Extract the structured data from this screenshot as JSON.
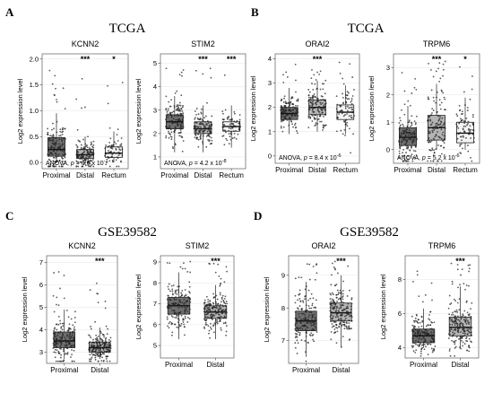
{
  "panel_letters": [
    "A",
    "B",
    "C",
    "D"
  ],
  "dataset_labels": [
    "TCGA",
    "TCGA",
    "GSE39582",
    "GSE39582"
  ],
  "colors": {
    "Proximal": "#6e6e6e",
    "Distal": "#b4b4b4",
    "Rectum": "#f4f4f4",
    "points": "#222222"
  },
  "chart_data": [
    {
      "type": "box",
      "panel": "A",
      "title": "KCNN2",
      "ylabel": "Log2 expression level",
      "categories": [
        "Proximal",
        "Distal",
        "Rectum"
      ],
      "yticks": [
        0.0,
        0.5,
        1.0,
        1.5,
        2.0
      ],
      "ylim": [
        -0.12,
        2.1
      ],
      "tick_labels": [
        "0.0",
        "0.5",
        "1.0",
        "1.5",
        "2.0"
      ],
      "boxes": [
        {
          "group": "Proximal",
          "whisker_low": 0.0,
          "q1": 0.12,
          "median": 0.25,
          "q3": 0.48,
          "whisker_high": 0.95,
          "n": 150
        },
        {
          "group": "Distal",
          "whisker_low": 0.0,
          "q1": 0.08,
          "median": 0.15,
          "q3": 0.25,
          "whisker_high": 0.5,
          "n": 140
        },
        {
          "group": "Rectum",
          "whisker_low": 0.0,
          "q1": 0.1,
          "median": 0.18,
          "q3": 0.3,
          "whisker_high": 0.6,
          "n": 80
        }
      ],
      "significance": [
        {
          "group": "Distal",
          "label": "***"
        },
        {
          "group": "Rectum",
          "label": "*"
        }
      ],
      "anova_text": "ANOVA, p = 6.6 x 10-7"
    },
    {
      "type": "box",
      "panel": "A",
      "title": "STIM2",
      "ylabel": "Log2 expression level",
      "categories": [
        "Proximal",
        "Distal",
        "Rectum"
      ],
      "yticks": [
        1,
        2,
        3,
        4,
        5
      ],
      "ylim": [
        0.5,
        5.4
      ],
      "tick_labels": [
        "1",
        "2",
        "3",
        "4",
        "5"
      ],
      "boxes": [
        {
          "group": "Proximal",
          "whisker_low": 1.2,
          "q1": 2.2,
          "median": 2.5,
          "q3": 2.8,
          "whisker_high": 3.6,
          "n": 150
        },
        {
          "group": "Distal",
          "whisker_low": 1.2,
          "q1": 2.0,
          "median": 2.2,
          "q3": 2.5,
          "whisker_high": 3.2,
          "n": 140
        },
        {
          "group": "Rectum",
          "whisker_low": 1.4,
          "q1": 2.1,
          "median": 2.3,
          "q3": 2.5,
          "whisker_high": 3.2,
          "n": 80
        }
      ],
      "significance": [
        {
          "group": "Distal",
          "label": "***"
        },
        {
          "group": "Rectum",
          "label": "***"
        }
      ],
      "anova_text": "ANOVA, p = 4.2 x 10-8"
    },
    {
      "type": "box",
      "panel": "B",
      "title": "ORAI2",
      "ylabel": "Log2 expression level",
      "categories": [
        "Proximal",
        "Distal",
        "Rectum"
      ],
      "yticks": [
        0,
        1,
        2,
        3,
        4
      ],
      "ylim": [
        -0.3,
        4.2
      ],
      "tick_labels": [
        "0",
        "1",
        "2",
        "3",
        "4"
      ],
      "boxes": [
        {
          "group": "Proximal",
          "whisker_low": 0.9,
          "q1": 1.5,
          "median": 1.75,
          "q3": 2.0,
          "whisker_high": 2.8,
          "n": 150
        },
        {
          "group": "Distal",
          "whisker_low": 1.0,
          "q1": 1.7,
          "median": 2.0,
          "q3": 2.3,
          "whisker_high": 3.1,
          "n": 140
        },
        {
          "group": "Rectum",
          "whisker_low": 0.9,
          "q1": 1.5,
          "median": 1.8,
          "q3": 2.1,
          "whisker_high": 2.9,
          "n": 80
        }
      ],
      "significance": [
        {
          "group": "Distal",
          "label": "***"
        }
      ],
      "anova_text": "ANOVA, p = 8.4 x 10-6"
    },
    {
      "type": "box",
      "panel": "B",
      "title": "TRPM6",
      "ylabel": "Log2 expression level",
      "categories": [
        "Proximal",
        "Distal",
        "Rectum"
      ],
      "yticks": [
        0,
        1,
        2,
        3
      ],
      "ylim": [
        -0.5,
        3.5
      ],
      "tick_labels": [
        "0",
        "1",
        "2",
        "3"
      ],
      "boxes": [
        {
          "group": "Proximal",
          "whisker_low": 0.0,
          "q1": 0.15,
          "median": 0.45,
          "q3": 0.8,
          "whisker_high": 1.6,
          "n": 150
        },
        {
          "group": "Distal",
          "whisker_low": 0.0,
          "q1": 0.35,
          "median": 0.8,
          "q3": 1.25,
          "whisker_high": 2.4,
          "n": 140
        },
        {
          "group": "Rectum",
          "whisker_low": 0.0,
          "q1": 0.25,
          "median": 0.6,
          "q3": 1.0,
          "whisker_high": 1.9,
          "n": 80
        }
      ],
      "significance": [
        {
          "group": "Distal",
          "label": "***"
        },
        {
          "group": "Rectum",
          "label": "*"
        }
      ],
      "anova_text": "ANOVA, p = 5.2 x 10-6"
    },
    {
      "type": "box",
      "panel": "C",
      "title": "KCNN2",
      "ylabel": "Log2 expression level",
      "categories": [
        "Proximal",
        "Distal"
      ],
      "yticks": [
        3,
        4,
        5,
        6,
        7
      ],
      "ylim": [
        2.5,
        7.3
      ],
      "tick_labels": [
        "3",
        "4",
        "5",
        "6",
        "7"
      ],
      "boxes": [
        {
          "group": "Proximal",
          "whisker_low": 2.7,
          "q1": 3.2,
          "median": 3.5,
          "q3": 3.9,
          "whisker_high": 4.9,
          "n": 170
        },
        {
          "group": "Distal",
          "whisker_low": 2.7,
          "q1": 3.0,
          "median": 3.2,
          "q3": 3.45,
          "whisker_high": 4.1,
          "n": 200
        }
      ],
      "significance": [
        {
          "group": "Distal",
          "label": "***"
        }
      ]
    },
    {
      "type": "box",
      "panel": "C",
      "title": "STIM2",
      "ylabel": "Log2 expression level",
      "categories": [
        "Proximal",
        "Distal"
      ],
      "yticks": [
        5,
        6,
        7,
        8,
        9
      ],
      "ylim": [
        4.4,
        9.3
      ],
      "tick_labels": [
        "5",
        "6",
        "7",
        "8",
        "9"
      ],
      "boxes": [
        {
          "group": "Proximal",
          "whisker_low": 5.3,
          "q1": 6.5,
          "median": 6.9,
          "q3": 7.3,
          "whisker_high": 8.5,
          "n": 170
        },
        {
          "group": "Distal",
          "whisker_low": 5.3,
          "q1": 6.3,
          "median": 6.6,
          "q3": 6.9,
          "whisker_high": 7.9,
          "n": 200
        }
      ],
      "significance": [
        {
          "group": "Distal",
          "label": "***"
        }
      ]
    },
    {
      "type": "box",
      "panel": "D",
      "title": "ORAI2",
      "ylabel": "Log2 expression level",
      "categories": [
        "Proximal",
        "Distal"
      ],
      "yticks": [
        7,
        8,
        9
      ],
      "ylim": [
        6.3,
        9.6
      ],
      "tick_labels": [
        "7",
        "8",
        "9"
      ],
      "boxes": [
        {
          "group": "Proximal",
          "whisker_low": 6.5,
          "q1": 7.3,
          "median": 7.6,
          "q3": 7.9,
          "whisker_high": 8.8,
          "n": 170
        },
        {
          "group": "Distal",
          "whisker_low": 6.8,
          "q1": 7.6,
          "median": 7.85,
          "q3": 8.15,
          "whisker_high": 9.0,
          "n": 200
        }
      ],
      "significance": [
        {
          "group": "Distal",
          "label": "***"
        }
      ]
    },
    {
      "type": "box",
      "panel": "D",
      "title": "TRPM6",
      "ylabel": "Log2 expression level",
      "categories": [
        "Proximal",
        "Distal"
      ],
      "yticks": [
        4,
        6,
        8
      ],
      "ylim": [
        3.4,
        9.4
      ],
      "tick_labels": [
        "4",
        "6",
        "8"
      ],
      "boxes": [
        {
          "group": "Proximal",
          "whisker_low": 4.0,
          "q1": 4.3,
          "median": 4.7,
          "q3": 5.1,
          "whisker_high": 6.3,
          "n": 170
        },
        {
          "group": "Distal",
          "whisker_low": 4.0,
          "q1": 4.7,
          "median": 5.2,
          "q3": 5.8,
          "whisker_high": 7.6,
          "n": 200
        }
      ],
      "significance": [
        {
          "group": "Distal",
          "label": "***"
        }
      ]
    }
  ]
}
